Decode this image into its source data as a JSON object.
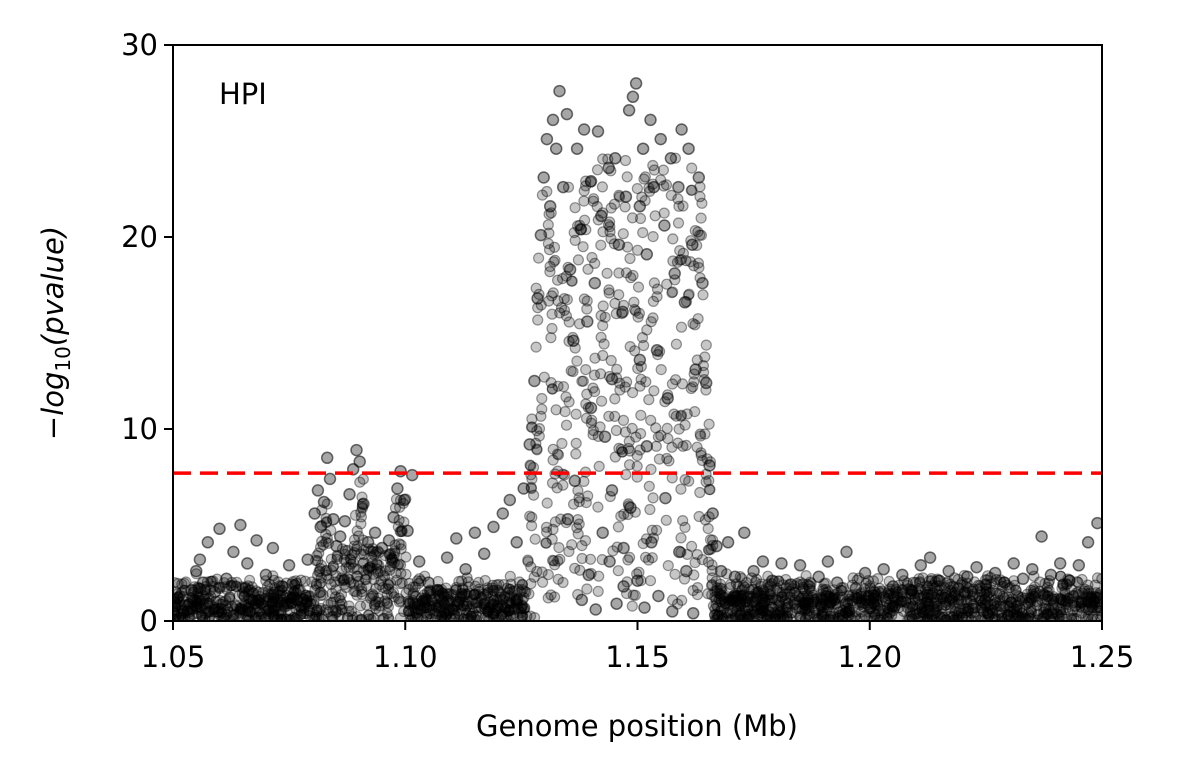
{
  "chart_data": {
    "type": "scatter",
    "title": "",
    "annotation": "HPI",
    "xlabel": "Genome position (Mb)",
    "ylabel": {
      "prefix": "−",
      "base": "log",
      "sub": "10",
      "arg": "(pvalue)"
    },
    "xlim": [
      1.05,
      1.25
    ],
    "ylim": [
      0,
      30
    ],
    "xticks": [
      1.05,
      1.1,
      1.15,
      1.2,
      1.25
    ],
    "xtick_labels": [
      "1.05",
      "1.10",
      "1.15",
      "1.20",
      "1.25"
    ],
    "yticks": [
      0,
      10,
      20,
      30
    ],
    "ytick_labels": [
      "0",
      "10",
      "20",
      "30"
    ],
    "grid": false,
    "point_color": "#000000",
    "point_alpha": 0.35,
    "threshold": {
      "y": 7.7,
      "color": "#ff0000",
      "style": "dashed"
    },
    "series": [
      {
        "points": [
          [
            1.0502,
            0.4
          ],
          [
            1.051,
            1.2
          ],
          [
            1.0525,
            0.8
          ],
          [
            1.054,
            1.6
          ],
          [
            1.055,
            2.6
          ],
          [
            1.0558,
            3.2
          ],
          [
            1.0565,
            2.0
          ],
          [
            1.0575,
            4.1
          ],
          [
            1.059,
            1.5
          ],
          [
            1.06,
            4.8
          ],
          [
            1.0615,
            2.2
          ],
          [
            1.063,
            3.6
          ],
          [
            1.0645,
            5.0
          ],
          [
            1.066,
            3.0
          ],
          [
            1.068,
            4.2
          ],
          [
            1.07,
            2.4
          ],
          [
            1.0715,
            3.8
          ],
          [
            1.0735,
            1.8
          ],
          [
            1.075,
            2.9
          ],
          [
            1.077,
            1.6
          ],
          [
            1.079,
            3.2
          ],
          [
            1.0805,
            5.6
          ],
          [
            1.0812,
            6.8
          ],
          [
            1.0818,
            4.9
          ],
          [
            1.0825,
            6.2
          ],
          [
            1.0832,
            8.5
          ],
          [
            1.0838,
            7.4
          ],
          [
            1.0845,
            5.3
          ],
          [
            1.0852,
            3.9
          ],
          [
            1.086,
            4.4
          ],
          [
            1.087,
            5.2
          ],
          [
            1.088,
            6.6
          ],
          [
            1.0888,
            7.9
          ],
          [
            1.0895,
            8.9
          ],
          [
            1.0902,
            8.3
          ],
          [
            1.091,
            6.1
          ],
          [
            1.092,
            4.1
          ],
          [
            1.0935,
            4.6
          ],
          [
            1.095,
            3.8
          ],
          [
            1.0965,
            4.2
          ],
          [
            1.0975,
            5.4
          ],
          [
            1.0983,
            6.9
          ],
          [
            1.099,
            7.8
          ],
          [
            1.0998,
            6.3
          ],
          [
            1.1005,
            4.7
          ],
          [
            1.1015,
            7.6
          ],
          [
            1.103,
            3.1
          ],
          [
            1.105,
            2.0
          ],
          [
            1.107,
            1.6
          ],
          [
            1.109,
            3.3
          ],
          [
            1.111,
            4.3
          ],
          [
            1.113,
            2.7
          ],
          [
            1.115,
            4.6
          ],
          [
            1.117,
            3.5
          ],
          [
            1.119,
            4.9
          ],
          [
            1.121,
            5.6
          ],
          [
            1.1225,
            6.3
          ],
          [
            1.124,
            4.1
          ],
          [
            1.1255,
            6.9
          ],
          [
            1.1268,
            9.2
          ],
          [
            1.1278,
            12.5
          ],
          [
            1.1285,
            16.8
          ],
          [
            1.1292,
            20.1
          ],
          [
            1.1298,
            23.1
          ],
          [
            1.1305,
            25.1
          ],
          [
            1.1312,
            21.6
          ],
          [
            1.1318,
            26.1
          ],
          [
            1.1325,
            24.6
          ],
          [
            1.1332,
            27.6
          ],
          [
            1.134,
            22.6
          ],
          [
            1.1348,
            26.4
          ],
          [
            1.1355,
            18.3
          ],
          [
            1.1362,
            14.6
          ],
          [
            1.137,
            24.6
          ],
          [
            1.1378,
            20.4
          ],
          [
            1.1385,
            25.6
          ],
          [
            1.1392,
            15.6
          ],
          [
            1.14,
            22.9
          ],
          [
            1.1408,
            17.6
          ],
          [
            1.1415,
            25.5
          ],
          [
            1.1422,
            21.1
          ],
          [
            1.143,
            9.6
          ],
          [
            1.1438,
            23.6
          ],
          [
            1.1445,
            12.6
          ],
          [
            1.1452,
            24.1
          ],
          [
            1.146,
            19.6
          ],
          [
            1.1468,
            16.1
          ],
          [
            1.1475,
            22.1
          ],
          [
            1.1482,
            26.6
          ],
          [
            1.149,
            27.3
          ],
          [
            1.1497,
            28.0
          ],
          [
            1.1505,
            21.6
          ],
          [
            1.1512,
            24.6
          ],
          [
            1.152,
            19.1
          ],
          [
            1.1528,
            26.1
          ],
          [
            1.1535,
            22.6
          ],
          [
            1.1542,
            14.1
          ],
          [
            1.155,
            25.1
          ],
          [
            1.1558,
            20.6
          ],
          [
            1.1565,
            11.6
          ],
          [
            1.1572,
            24.1
          ],
          [
            1.158,
            18.1
          ],
          [
            1.1588,
            22.6
          ],
          [
            1.1595,
            25.6
          ],
          [
            1.1602,
            16.6
          ],
          [
            1.161,
            24.6
          ],
          [
            1.1618,
            19.6
          ],
          [
            1.1625,
            13.1
          ],
          [
            1.1632,
            23.1
          ],
          [
            1.164,
            17.6
          ],
          [
            1.1648,
            12.4
          ],
          [
            1.1655,
            8.1
          ],
          [
            1.1662,
            5.6
          ],
          [
            1.167,
            3.9
          ],
          [
            1.168,
            2.6
          ],
          [
            1.1695,
            4.1
          ],
          [
            1.171,
            2.3
          ],
          [
            1.173,
            4.6
          ],
          [
            1.175,
            2.6
          ],
          [
            1.177,
            3.1
          ],
          [
            1.179,
            2.1
          ],
          [
            1.181,
            3.0
          ],
          [
            1.183,
            1.9
          ],
          [
            1.185,
            2.9
          ],
          [
            1.187,
            1.8
          ],
          [
            1.189,
            2.3
          ],
          [
            1.191,
            3.1
          ],
          [
            1.193,
            2.0
          ],
          [
            1.195,
            3.6
          ],
          [
            1.197,
            1.7
          ],
          [
            1.199,
            2.5
          ],
          [
            1.201,
            1.5
          ],
          [
            1.203,
            2.7
          ],
          [
            1.205,
            1.8
          ],
          [
            1.207,
            2.4
          ],
          [
            1.209,
            1.6
          ],
          [
            1.211,
            2.9
          ],
          [
            1.213,
            3.3
          ],
          [
            1.215,
            2.1
          ],
          [
            1.217,
            2.6
          ],
          [
            1.219,
            1.7
          ],
          [
            1.221,
            2.3
          ],
          [
            1.223,
            2.8
          ],
          [
            1.225,
            1.9
          ],
          [
            1.227,
            2.5
          ],
          [
            1.229,
            2.0
          ],
          [
            1.231,
            3.0
          ],
          [
            1.233,
            2.2
          ],
          [
            1.235,
            2.7
          ],
          [
            1.237,
            4.4
          ],
          [
            1.239,
            2.4
          ],
          [
            1.241,
            3.0
          ],
          [
            1.243,
            2.1
          ],
          [
            1.245,
            2.9
          ],
          [
            1.247,
            4.1
          ],
          [
            1.249,
            5.1
          ],
          [
            1.138,
            1.1
          ],
          [
            1.1395,
            2.4
          ],
          [
            1.141,
            0.6
          ],
          [
            1.1425,
            4.6
          ],
          [
            1.144,
            3.1
          ],
          [
            1.1455,
            0.9
          ],
          [
            1.147,
            1.8
          ],
          [
            1.1485,
            5.9
          ],
          [
            1.15,
            2.1
          ],
          [
            1.1515,
            0.7
          ],
          [
            1.153,
            4.1
          ],
          [
            1.1545,
            1.3
          ],
          [
            1.156,
            6.4
          ],
          [
            1.1575,
            0.5
          ],
          [
            1.159,
            3.6
          ],
          [
            1.1605,
            2.6
          ],
          [
            1.162,
            0.4
          ],
          [
            1.135,
            5.3
          ],
          [
            1.1365,
            7.3
          ],
          [
            1.1445,
            6.8
          ],
          [
            1.152,
            9.1
          ],
          [
            1.147,
            3.8
          ],
          [
            1.14,
            11.1
          ],
          [
            1.1505,
            13.6
          ]
        ]
      }
    ]
  }
}
